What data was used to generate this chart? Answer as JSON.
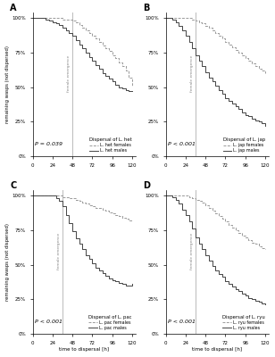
{
  "panels": [
    {
      "label": "A",
      "title": "Dispersal of L. het",
      "p_value": "P = 0.039",
      "vline": 48,
      "female_line": {
        "x": [
          0,
          4,
          8,
          12,
          16,
          20,
          24,
          28,
          32,
          36,
          40,
          44,
          48,
          52,
          56,
          60,
          64,
          68,
          72,
          76,
          80,
          84,
          88,
          92,
          96,
          100,
          104,
          108,
          112,
          116,
          120
        ],
        "y": [
          100,
          100,
          100,
          100,
          100,
          100,
          100,
          100,
          100,
          99,
          99,
          99,
          98,
          97,
          95,
          93,
          91,
          89,
          87,
          85,
          83,
          80,
          78,
          76,
          73,
          71,
          68,
          65,
          62,
          57,
          51
        ]
      },
      "male_line": {
        "x": [
          0,
          4,
          8,
          12,
          16,
          20,
          24,
          28,
          32,
          36,
          40,
          44,
          48,
          52,
          56,
          60,
          64,
          68,
          72,
          76,
          80,
          84,
          88,
          92,
          96,
          100,
          104,
          108,
          112,
          116,
          120
        ],
        "y": [
          100,
          100,
          100,
          100,
          99,
          98,
          97,
          96,
          95,
          93,
          91,
          89,
          87,
          84,
          81,
          78,
          75,
          72,
          69,
          66,
          63,
          60,
          58,
          56,
          54,
          52,
          50,
          49,
          48,
          47,
          47
        ]
      },
      "legend_females": "L. het females",
      "legend_males": "L. het males"
    },
    {
      "label": "B",
      "title": "Dispersal of L. jap",
      "p_value": "P < 0.001",
      "vline": 36,
      "female_line": {
        "x": [
          0,
          4,
          8,
          12,
          16,
          20,
          24,
          28,
          32,
          36,
          40,
          44,
          48,
          52,
          56,
          60,
          64,
          68,
          72,
          76,
          80,
          84,
          88,
          92,
          96,
          100,
          104,
          108,
          112,
          116,
          120
        ],
        "y": [
          100,
          100,
          100,
          100,
          100,
          100,
          100,
          100,
          99,
          98,
          97,
          96,
          94,
          93,
          91,
          89,
          87,
          85,
          83,
          81,
          79,
          77,
          75,
          73,
          71,
          69,
          67,
          65,
          63,
          62,
          60
        ]
      },
      "male_line": {
        "x": [
          0,
          4,
          8,
          12,
          16,
          20,
          24,
          28,
          32,
          36,
          40,
          44,
          48,
          52,
          56,
          60,
          64,
          68,
          72,
          76,
          80,
          84,
          88,
          92,
          96,
          100,
          104,
          108,
          112,
          116,
          120
        ],
        "y": [
          100,
          100,
          99,
          97,
          94,
          91,
          87,
          83,
          78,
          73,
          69,
          65,
          61,
          57,
          54,
          51,
          48,
          45,
          42,
          40,
          38,
          36,
          34,
          32,
          30,
          29,
          27,
          26,
          25,
          24,
          22
        ]
      },
      "legend_females": "L. jap females",
      "legend_males": "L. jap males"
    },
    {
      "label": "C",
      "title": "Dispersal of L. pac",
      "p_value": "P < 0.001",
      "vline": 36,
      "female_line": {
        "x": [
          0,
          4,
          8,
          12,
          16,
          20,
          24,
          28,
          32,
          36,
          40,
          44,
          48,
          52,
          56,
          60,
          64,
          68,
          72,
          76,
          80,
          84,
          88,
          92,
          96,
          100,
          104,
          108,
          112,
          116,
          120
        ],
        "y": [
          100,
          100,
          100,
          100,
          100,
          100,
          100,
          100,
          100,
          99,
          99,
          98,
          98,
          97,
          96,
          95,
          94,
          93,
          92,
          91,
          91,
          90,
          89,
          88,
          87,
          86,
          85,
          84,
          83,
          82,
          81
        ]
      },
      "male_line": {
        "x": [
          0,
          4,
          8,
          12,
          16,
          20,
          24,
          28,
          32,
          36,
          40,
          44,
          48,
          52,
          56,
          60,
          64,
          68,
          72,
          76,
          80,
          84,
          88,
          92,
          96,
          100,
          104,
          108,
          112,
          116,
          120
        ],
        "y": [
          100,
          100,
          100,
          100,
          100,
          100,
          100,
          98,
          96,
          92,
          86,
          80,
          74,
          69,
          65,
          61,
          57,
          54,
          51,
          48,
          46,
          44,
          42,
          40,
          39,
          38,
          37,
          36,
          35,
          35,
          36
        ]
      },
      "legend_females": "L. pac females",
      "legend_males": "L. pac males"
    },
    {
      "label": "D",
      "title": "Dispersal of L. ryu",
      "p_value": "P < 0.001",
      "vline": 36,
      "female_line": {
        "x": [
          0,
          4,
          8,
          12,
          16,
          20,
          24,
          28,
          32,
          36,
          40,
          44,
          48,
          52,
          56,
          60,
          64,
          68,
          72,
          76,
          80,
          84,
          88,
          92,
          96,
          100,
          104,
          108,
          112,
          116,
          120
        ],
        "y": [
          100,
          100,
          100,
          100,
          100,
          100,
          100,
          99,
          98,
          97,
          96,
          95,
          93,
          91,
          89,
          87,
          85,
          83,
          81,
          79,
          77,
          75,
          73,
          71,
          70,
          68,
          66,
          65,
          63,
          62,
          61
        ]
      },
      "male_line": {
        "x": [
          0,
          4,
          8,
          12,
          16,
          20,
          24,
          28,
          32,
          36,
          40,
          44,
          48,
          52,
          56,
          60,
          64,
          68,
          72,
          76,
          80,
          84,
          88,
          92,
          96,
          100,
          104,
          108,
          112,
          116,
          120
        ],
        "y": [
          100,
          100,
          99,
          97,
          94,
          90,
          86,
          81,
          76,
          70,
          65,
          61,
          57,
          53,
          49,
          46,
          43,
          41,
          38,
          36,
          34,
          32,
          31,
          29,
          28,
          26,
          25,
          24,
          23,
          22,
          21
        ]
      },
      "legend_females": "L. ryu females",
      "legend_males": "L. ryu males"
    }
  ],
  "female_color": "#999999",
  "male_color": "#444444",
  "xlabel": "time to dispersal [h]",
  "ylabel": "remaining wasps (not dispersed)",
  "xticks": [
    0,
    24,
    48,
    72,
    96,
    120
  ],
  "ytick_labels": [
    "0%",
    "25%",
    "50%",
    "75%",
    "100%"
  ],
  "yticks": [
    0,
    25,
    50,
    75,
    100
  ],
  "vline_color": "#bbbbbb",
  "vline_label": "female emergence",
  "background": "#ffffff"
}
